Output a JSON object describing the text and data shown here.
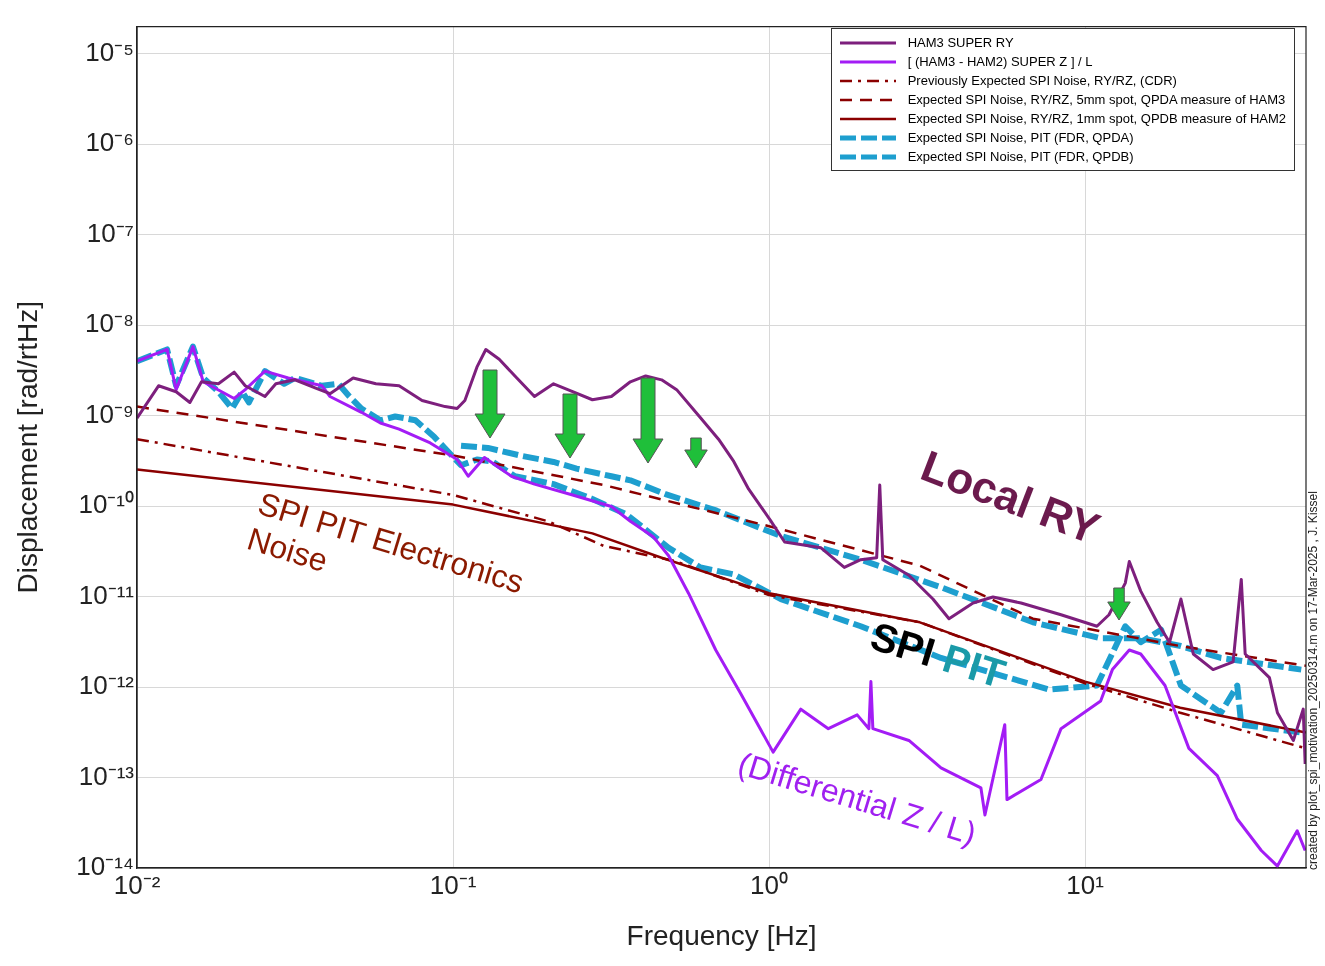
{
  "chart_data": {
    "type": "line",
    "xlabel": "Frequency [Hz]",
    "ylabel": "Displacement [rad/rtHz]",
    "log": "xy",
    "grid": true,
    "legend": "top right",
    "marker": "none",
    "xlim": [
      0.01,
      50
    ],
    "xticks": [
      {
        "value": 0.01,
        "label": "10⁻²"
      },
      {
        "value": 0.1,
        "label": "10⁻¹"
      },
      {
        "value": 1,
        "label": "10⁰"
      },
      {
        "value": 10,
        "label": "10¹"
      }
    ],
    "ylim": [
      1e-14,
      2e-05
    ],
    "yticks": [
      {
        "value": 1e-14,
        "label": "10⁻¹⁴"
      },
      {
        "value": 1e-13,
        "label": "10⁻¹³"
      },
      {
        "value": 1e-12,
        "label": "10⁻¹²"
      },
      {
        "value": 1e-11,
        "label": "10⁻¹¹"
      },
      {
        "value": 1e-10,
        "label": "10⁻¹⁰"
      },
      {
        "value": 1e-09,
        "label": "10⁻⁹"
      },
      {
        "value": 1e-08,
        "label": "10⁻⁸"
      },
      {
        "value": 1e-07,
        "label": "10⁻⁷"
      },
      {
        "value": 1e-06,
        "label": "10⁻⁶"
      },
      {
        "value": 1e-05,
        "label": "10⁻⁵"
      }
    ],
    "series": [
      {
        "name": "HAM3 SUPER RY",
        "color": "#7d1f7d",
        "line_style": "solid",
        "x": [
          0.01,
          0.0117,
          0.0133,
          0.0147,
          0.016,
          0.0181,
          0.0203,
          0.022,
          0.0254,
          0.0275,
          0.0316,
          0.0366,
          0.0408,
          0.0483,
          0.057,
          0.0675,
          0.0798,
          0.0944,
          0.103,
          0.109,
          0.119,
          0.127,
          0.14,
          0.157,
          0.181,
          0.208,
          0.239,
          0.276,
          0.317,
          0.364,
          0.407,
          0.457,
          0.51,
          0.602,
          0.692,
          0.773,
          0.861,
          1.01,
          1.12,
          1.46,
          1.73,
          1.95,
          2.19,
          2.24,
          2.29,
          2.77,
          3.3,
          3.71,
          4.42,
          5.11,
          6.27,
          8.39,
          10.9,
          11.9,
          13.4,
          13.8,
          15,
          16.9,
          18.5,
          20.1,
          22,
          25.4,
          29.4,
          31.2,
          32.1,
          38.3,
          40.6,
          45.6,
          49,
          49.7
        ],
        "values": [
          9.4e-10,
          2.14e-09,
          1.84e-09,
          1.4e-09,
          2.37e-09,
          2.25e-09,
          3.03e-09,
          2.14e-09,
          1.63e-09,
          2.25e-09,
          2.49e-09,
          2.03e-09,
          1.75e-09,
          2.61e-09,
          2.25e-09,
          2.14e-09,
          1.47e-09,
          1.26e-09,
          1.2e-09,
          1.47e-09,
          3.44e-09,
          5.39e-09,
          4.2e-09,
          2.75e-09,
          1.63e-09,
          2.25e-09,
          1.84e-09,
          1.5e-09,
          1.63e-09,
          2.37e-09,
          2.75e-09,
          2.49e-09,
          1.94e-09,
          9.8e-10,
          5.5e-10,
          3.12e-10,
          1.55e-10,
          6.97e-11,
          4.02e-11,
          3.46e-11,
          2.1e-11,
          2.56e-11,
          2.69e-11,
          1.71e-10,
          2.56e-11,
          1.72e-11,
          9.4e-12,
          5.7e-12,
          8.5e-12,
          9.9e-12,
          8.5e-12,
          6.3e-12,
          4.7e-12,
          6.3e-12,
          1.41e-11,
          2.44e-11,
          1.15e-11,
          5.2e-12,
          3.13e-12,
          9.4e-12,
          2.32e-12,
          1.56e-12,
          1.9e-12,
          1.55e-11,
          2.32e-12,
          1.27e-12,
          5.2e-13,
          2.57e-13,
          5.7e-13,
          1.41e-13
        ]
      },
      {
        "name": "[ (HAM3 - HAM2) SUPER Z ] / L",
        "color": "#a31cf5",
        "line_style": "solid",
        "x": [
          0.01,
          0.01245,
          0.0133,
          0.01503,
          0.0162,
          0.0203,
          0.022,
          0.0254,
          0.0301,
          0.0385,
          0.0408,
          0.0513,
          0.0589,
          0.0675,
          0.0847,
          0.103,
          0.1117,
          0.1257,
          0.1531,
          0.181,
          0.239,
          0.317,
          0.364,
          0.431,
          0.481,
          0.556,
          0.678,
          0.813,
          1.03,
          1.26,
          1.54,
          1.9,
          2.07,
          2.1,
          2.13,
          2.77,
          3.5,
          4.68,
          4.82,
          5.57,
          5.66,
          7.25,
          8.39,
          11.2,
          12.2,
          13.8,
          15,
          17.9,
          21.3,
          26.2,
          30.3,
          36.1,
          40.6,
          46.9,
          49.7
        ],
        "values": [
          4e-09,
          5.4e-09,
          1.94e-09,
          5.8e-09,
          2.37e-09,
          1.55e-09,
          1.94e-09,
          3.11e-09,
          2.61e-09,
          2.14e-09,
          1.63e-09,
          1.09e-09,
          8.3e-10,
          7.1e-10,
          5e-10,
          3.28e-10,
          2.14e-10,
          3.45e-10,
          2.14e-10,
          1.75e-10,
          1.33e-10,
          9.9e-11,
          6.8e-11,
          4.55e-11,
          2.83e-11,
          1.09e-11,
          2.57e-12,
          8.5e-13,
          1.91e-13,
          5.7e-13,
          3.47e-13,
          4.93e-13,
          3.47e-13,
          1.15e-12,
          3.47e-13,
          2.57e-13,
          1.28e-13,
          7.7e-14,
          3.85e-14,
          3.84e-13,
          5.7e-14,
          9.5e-14,
          3.47e-13,
          7e-13,
          1.56e-12,
          2.57e-12,
          2.32e-12,
          1.04e-12,
          2.1e-13,
          1.05e-13,
          3.48e-14,
          1.56e-14,
          1.05e-14,
          2.58e-14,
          1.56e-14
        ]
      },
      {
        "name": "Previously Expected SPI Noise, RY/RZ, (CDR)",
        "color": "#8b0000",
        "line_style": "dash-dot",
        "x": [
          0.01,
          0.1,
          0.2,
          0.3,
          0.5,
          1,
          3,
          10,
          20,
          50
        ],
        "values": [
          5.5e-10,
          1.33e-10,
          6.8e-11,
          3.63e-11,
          2.49e-11,
          1.04e-11,
          5.2e-12,
          1.1e-12,
          5.2e-13,
          2.1e-13
        ]
      },
      {
        "name": "Expected SPI Noise, RY/RZ, 5mm spot, QPDA measure of HAM3",
        "color": "#8b0000",
        "line_style": "dashed",
        "x": [
          0.01,
          0.1,
          0.3,
          1,
          3,
          6.84,
          20,
          50
        ],
        "values": [
          1.26e-09,
          3.63e-10,
          1.71e-10,
          6e-11,
          2.2e-11,
          5.7e-12,
          2.84e-12,
          1.72e-12
        ]
      },
      {
        "name": "Expected SPI Noise, RY/RZ, 1mm spot, QPDB measure of HAM2",
        "color": "#8b0000",
        "line_style": "solid",
        "x": [
          0.01,
          0.1,
          0.276,
          0.457,
          1,
          3,
          10,
          20,
          50
        ],
        "values": [
          2.55e-10,
          1.04e-10,
          5e-11,
          2.69e-11,
          1.09e-11,
          5.2e-12,
          1.15e-12,
          5.9e-13,
          3.14e-13
        ]
      },
      {
        "name": "Expected SPI Noise, PIT (FDR, QPDA)",
        "color": "#1e9fcf",
        "line_style": "dashed",
        "x": [
          0.106,
          0.129,
          0.166,
          0.208,
          0.246,
          0.317,
          0.364,
          0.47,
          0.683,
          1.09,
          1.95,
          3.5,
          6.84,
          11.2,
          15,
          20.1,
          26.9,
          48.3
        ],
        "values": [
          4.66e-10,
          4.4e-10,
          3.58e-10,
          3.08e-10,
          2.6e-10,
          2.14e-10,
          1.93e-10,
          1.36e-10,
          8.9e-11,
          4.67e-11,
          2.56e-11,
          1.27e-11,
          5.2e-12,
          3.47e-12,
          3.47e-12,
          2.84e-12,
          2.1e-12,
          1.56e-12
        ]
      },
      {
        "name": "Expected SPI Noise, PIT (FDR, QPDB)",
        "color": "#1e9fcf",
        "line_style": "dashed",
        "x": [
          0.01,
          0.01245,
          0.0133,
          0.01503,
          0.0162,
          0.0181,
          0.02,
          0.0215,
          0.0226,
          0.0254,
          0.0292,
          0.0316,
          0.0385,
          0.0434,
          0.047,
          0.0513,
          0.0589,
          0.0656,
          0.076,
          0.0873,
          0.106,
          0.119,
          0.133,
          0.157,
          0.208,
          0.276,
          0.354,
          0.481,
          0.607,
          0.773,
          1.09,
          1.95,
          3.5,
          7.69,
          10.9,
          13.4,
          15,
          17.4,
          20.1,
          26.9,
          30.3,
          31.2,
          48.3
        ],
        "values": [
          4e-09,
          5.4e-09,
          2.14e-09,
          5.8e-09,
          2.61e-09,
          1.84e-09,
          1.2e-09,
          1.84e-09,
          1.4e-09,
          3.11e-09,
          2.25e-09,
          2.61e-09,
          2.14e-09,
          2.25e-09,
          1.63e-09,
          1.2e-09,
          8.9e-10,
          9.8e-10,
          8.9e-10,
          5.8e-10,
          2.83e-10,
          3.28e-10,
          3.12e-10,
          2.14e-10,
          1.75e-10,
          1.2e-10,
          8.1e-11,
          3.46e-11,
          2.1e-11,
          1.76e-11,
          9.4e-12,
          4.7e-12,
          2.1e-12,
          9.4e-13,
          1.04e-12,
          4.7e-12,
          3.13e-12,
          4.3e-12,
          1.04e-12,
          5.2e-13,
          1.04e-12,
          3.84e-13,
          3.14e-13
        ]
      }
    ],
    "annotations": [
      "SPI PIT Electronics Noise",
      "Local RY",
      "SPI PIT",
      "(Differential Z / L)",
      "created by plot_spi_motivation_20250314.m on 17-Mar-2025 , J. Kissel"
    ]
  }
}
